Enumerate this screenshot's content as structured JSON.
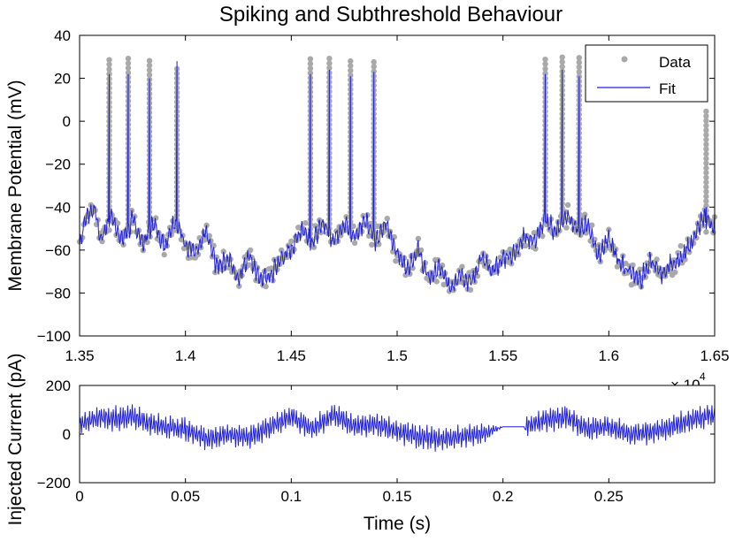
{
  "chart_data": [
    {
      "type": "scatter+line",
      "title": "Spiking and Subthreshold Behaviour",
      "xlabel": "",
      "ylabel": "Membrane Potential (mV)",
      "xlim": [
        1.35,
        1.65
      ],
      "ylim": [
        -100,
        40
      ],
      "x_ticks": [
        "1.35",
        "1.4",
        "1.45",
        "1.5",
        "1.55",
        "1.6",
        "1.65"
      ],
      "y_ticks": [
        "40",
        "20",
        "0",
        "−20",
        "−40",
        "−60",
        "−80",
        "−100"
      ],
      "x_exponent_base": "× 10",
      "x_exponent_power": "4",
      "legend": {
        "position": "top-right",
        "entries": [
          "Data",
          "Fit"
        ]
      },
      "colors": {
        "data": "#a9a9a9",
        "fit": "#1f1fe0"
      },
      "grid": false,
      "series": [
        {
          "name": "Data",
          "style": "markers",
          "baseline_x": [
            1.35,
            1.353,
            1.357,
            1.36,
            1.365,
            1.37,
            1.375,
            1.38,
            1.385,
            1.39,
            1.395,
            1.4,
            1.405,
            1.41,
            1.415,
            1.42,
            1.425,
            1.43,
            1.435,
            1.44,
            1.445,
            1.45,
            1.455,
            1.46,
            1.465,
            1.47,
            1.475,
            1.48,
            1.485,
            1.49,
            1.495,
            1.5,
            1.505,
            1.51,
            1.515,
            1.52,
            1.525,
            1.53,
            1.535,
            1.54,
            1.545,
            1.55,
            1.555,
            1.56,
            1.565,
            1.57,
            1.575,
            1.58,
            1.585,
            1.59,
            1.595,
            1.6,
            1.605,
            1.61,
            1.615,
            1.62,
            1.625,
            1.63,
            1.635,
            1.64,
            1.645,
            1.65
          ],
          "baseline_y": [
            -57,
            -44,
            -40,
            -55,
            -44,
            -56,
            -46,
            -57,
            -47,
            -58,
            -46,
            -57,
            -62,
            -52,
            -68,
            -64,
            -73,
            -62,
            -74,
            -72,
            -64,
            -60,
            -49,
            -56,
            -48,
            -55,
            -47,
            -54,
            -45,
            -56,
            -47,
            -62,
            -68,
            -60,
            -74,
            -68,
            -78,
            -71,
            -75,
            -64,
            -70,
            -64,
            -62,
            -54,
            -56,
            -46,
            -52,
            -44,
            -50,
            -48,
            -62,
            -55,
            -66,
            -70,
            -74,
            -65,
            -72,
            -66,
            -64,
            -54,
            -45,
            -50
          ],
          "spike_x": [
            1.364,
            1.373,
            1.383,
            1.396,
            1.459,
            1.468,
            1.478,
            1.489,
            1.57,
            1.578,
            1.586,
            1.646
          ],
          "spike_peak": [
            30,
            30,
            30,
            25,
            30,
            30,
            30,
            28,
            29,
            30,
            30,
            6
          ]
        },
        {
          "name": "Fit",
          "style": "line",
          "spike_peak": [
            22,
            22,
            20,
            28,
            22,
            24,
            21,
            23,
            22,
            24,
            21,
            -40
          ]
        }
      ]
    },
    {
      "type": "line",
      "title": "",
      "xlabel": "Time (s)",
      "ylabel": "Injected Current (pA)",
      "xlim": [
        0,
        0.3
      ],
      "ylim": [
        -200,
        200
      ],
      "x_ticks": [
        "0",
        "0.05",
        "0.1",
        "0.15",
        "0.2",
        "0.25"
      ],
      "y_ticks": [
        "200",
        "0",
        "−200"
      ],
      "colors": {
        "line": "#1f1fe0"
      },
      "grid": false,
      "series": [
        {
          "name": "",
          "envelope_t": [
            0,
            0.01,
            0.02,
            0.025,
            0.03,
            0.04,
            0.05,
            0.06,
            0.07,
            0.08,
            0.09,
            0.1,
            0.11,
            0.12,
            0.13,
            0.14,
            0.15,
            0.16,
            0.17,
            0.18,
            0.19,
            0.2,
            0.21,
            0.22,
            0.23,
            0.24,
            0.25,
            0.26,
            0.27,
            0.28,
            0.29,
            0.3
          ],
          "envelope_center": [
            40,
            70,
            60,
            75,
            50,
            30,
            20,
            -20,
            0,
            -15,
            30,
            70,
            20,
            80,
            30,
            40,
            10,
            -10,
            -20,
            -10,
            0,
            30,
            30,
            60,
            70,
            20,
            30,
            0,
            10,
            30,
            60,
            80
          ],
          "envelope_amplitude": [
            45,
            55,
            60,
            60,
            55,
            55,
            55,
            55,
            55,
            55,
            55,
            55,
            55,
            55,
            55,
            55,
            55,
            55,
            55,
            55,
            50,
            0,
            50,
            55,
            60,
            55,
            55,
            55,
            55,
            55,
            55,
            55
          ],
          "flat_segment": {
            "t_start": 0.2,
            "t_end": 0.21,
            "value": 30
          }
        }
      ]
    }
  ]
}
